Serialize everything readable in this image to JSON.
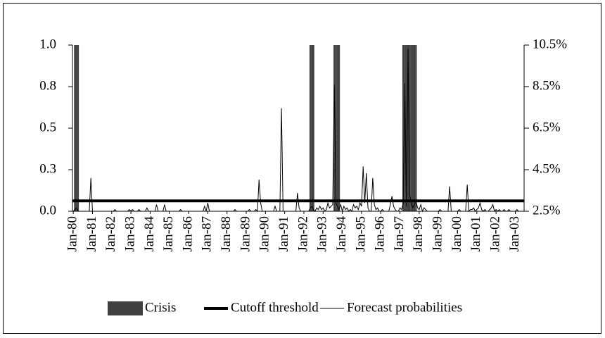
{
  "chart_data": {
    "type": "combo",
    "categories": [
      "Jan-80",
      null,
      null,
      null,
      null,
      null,
      null,
      null,
      null,
      null,
      null,
      null,
      "Jan-81",
      null,
      null,
      null,
      null,
      null,
      null,
      null,
      null,
      null,
      null,
      null,
      "Jan-82",
      null,
      null,
      null,
      null,
      null,
      null,
      null,
      null,
      null,
      null,
      null,
      "Jan-83",
      null,
      null,
      null,
      null,
      null,
      null,
      null,
      null,
      null,
      null,
      null,
      "Jan-84",
      null,
      null,
      null,
      null,
      null,
      null,
      null,
      null,
      null,
      null,
      null,
      "Jan-85",
      null,
      null,
      null,
      null,
      null,
      null,
      null,
      null,
      null,
      null,
      null,
      "Jan-86",
      null,
      null,
      null,
      null,
      null,
      null,
      null,
      null,
      null,
      null,
      null,
      "Jan-87",
      null,
      null,
      null,
      null,
      null,
      null,
      null,
      null,
      null,
      null,
      null,
      "Jan-88",
      null,
      null,
      null,
      null,
      null,
      null,
      null,
      null,
      null,
      null,
      null,
      "Jan-89",
      null,
      null,
      null,
      null,
      null,
      null,
      null,
      null,
      null,
      null,
      null,
      "Jan-90",
      null,
      null,
      null,
      null,
      null,
      null,
      null,
      null,
      null,
      null,
      null,
      "Jan-91",
      null,
      null,
      null,
      null,
      null,
      null,
      null,
      null,
      null,
      null,
      null,
      "Jan-92",
      null,
      null,
      null,
      null,
      null,
      null,
      null,
      null,
      null,
      null,
      null,
      "Jan-93",
      null,
      null,
      null,
      null,
      null,
      null,
      null,
      null,
      null,
      null,
      null,
      "Jan-94",
      null,
      null,
      null,
      null,
      null,
      null,
      null,
      null,
      null,
      null,
      null,
      "Jan-95",
      null,
      null,
      null,
      null,
      null,
      null,
      null,
      null,
      null,
      null,
      null,
      "Jan-96",
      null,
      null,
      null,
      null,
      null,
      null,
      null,
      null,
      null,
      null,
      null,
      "Jan-97",
      null,
      null,
      null,
      null,
      null,
      null,
      null,
      null,
      null,
      null,
      null,
      "Jan-98",
      null,
      null,
      null,
      null,
      null,
      null,
      null,
      null,
      null,
      null,
      null,
      "Jan-99",
      null,
      null,
      null,
      null,
      null,
      null,
      null,
      null,
      null,
      null,
      null,
      "Jan-00",
      null,
      null,
      null,
      null,
      null,
      null,
      null,
      null,
      null,
      null,
      null,
      "Jan-01",
      null,
      null,
      null,
      null,
      null,
      null,
      null,
      null,
      null,
      null,
      null,
      "Jan-02",
      null,
      null,
      null,
      null,
      null,
      null,
      null,
      null,
      null,
      null,
      null,
      "Jan-03",
      null,
      null,
      null,
      null,
      null
    ],
    "series": [
      {
        "name": "Crisis",
        "type": "bar",
        "color": "#404040",
        "values": [
          0,
          1,
          1,
          1,
          0,
          0,
          0,
          0,
          0,
          0,
          0,
          0,
          0,
          0,
          0,
          0,
          0,
          0,
          0,
          0,
          0,
          0,
          0,
          0,
          0,
          0,
          0,
          0,
          0,
          0,
          0,
          0,
          0,
          0,
          0,
          0,
          0,
          0,
          0,
          0,
          0,
          0,
          0,
          0,
          0,
          0,
          0,
          0,
          0,
          0,
          0,
          0,
          0,
          0,
          0,
          0,
          0,
          0,
          0,
          0,
          0,
          0,
          0,
          0,
          0,
          0,
          0,
          0,
          0,
          0,
          0,
          0,
          0,
          0,
          0,
          0,
          0,
          0,
          0,
          0,
          0,
          0,
          0,
          0,
          0,
          0,
          0,
          0,
          0,
          0,
          0,
          0,
          0,
          0,
          0,
          0,
          0,
          0,
          0,
          0,
          0,
          0,
          0,
          0,
          0,
          0,
          0,
          0,
          0,
          0,
          0,
          0,
          0,
          0,
          0,
          0,
          0,
          0,
          0,
          0,
          0,
          0,
          0,
          0,
          0,
          0,
          0,
          0,
          0,
          0,
          0,
          0,
          0,
          0,
          0,
          0,
          0,
          0,
          0,
          0,
          0,
          0,
          0,
          0,
          0,
          0,
          0,
          0,
          1,
          1,
          1,
          0,
          0,
          0,
          0,
          0,
          0,
          0,
          0,
          0,
          0,
          0,
          0,
          1,
          1,
          1,
          1,
          0,
          0,
          0,
          0,
          0,
          0,
          0,
          0,
          0,
          0,
          0,
          0,
          0,
          0,
          0,
          0,
          0,
          0,
          0,
          0,
          0,
          0,
          0,
          0,
          0,
          0,
          0,
          0,
          0,
          0,
          0,
          0,
          0,
          0,
          0,
          0,
          0,
          0,
          0,
          1,
          1,
          1,
          1,
          1,
          1,
          1,
          1,
          1,
          0,
          0,
          0,
          0,
          0,
          0,
          0,
          0,
          0,
          0,
          0,
          0,
          0,
          0,
          0,
          0,
          0,
          0,
          0,
          0,
          0,
          0,
          0,
          0,
          0,
          0,
          0,
          0,
          0,
          0,
          0,
          0,
          0,
          0,
          0,
          0,
          0,
          0,
          0,
          0,
          0,
          0,
          0,
          0,
          0,
          0,
          0,
          0,
          0,
          0,
          0,
          0,
          0,
          0,
          0,
          0,
          0,
          0,
          0,
          0,
          0,
          0,
          0,
          0,
          0,
          0,
          0
        ]
      },
      {
        "name": "Cutoff threshold",
        "type": "hline",
        "color": "#000000",
        "axis": "y2",
        "value": 3
      },
      {
        "name": "Forecast probabilities",
        "type": "line",
        "color": "#000000",
        "values": [
          0,
          0.01,
          0.02,
          0,
          0,
          0,
          0,
          0,
          0,
          0,
          0,
          0.2,
          0,
          0,
          0,
          0,
          0,
          0,
          0,
          0,
          0,
          0,
          0,
          0,
          0,
          0,
          0.01,
          0,
          0,
          0,
          0,
          0,
          0,
          0,
          0,
          0.01,
          0,
          0.01,
          0,
          0,
          0,
          0.01,
          0,
          0,
          0,
          0,
          0.02,
          0,
          0,
          0,
          0,
          0,
          0.04,
          0,
          0,
          0,
          0,
          0.04,
          0,
          0,
          0,
          0,
          0,
          0,
          0,
          0,
          0,
          0.01,
          0,
          0,
          0,
          0,
          0,
          0,
          0,
          0,
          0,
          0,
          0,
          0,
          0,
          0,
          0.03,
          0,
          0.05,
          0,
          0,
          0,
          0,
          0,
          0,
          0,
          0,
          0,
          0,
          0,
          0,
          0,
          0,
          0,
          0,
          0.01,
          0,
          0,
          0,
          0,
          0,
          0,
          0,
          0,
          0.01,
          0,
          0,
          0,
          0.01,
          0,
          0.19,
          0.05,
          0,
          0,
          0,
          0,
          0,
          0,
          0,
          0,
          0.03,
          0,
          0,
          0,
          0.62,
          0,
          0,
          0,
          0,
          0,
          0,
          0,
          0,
          0,
          0.11,
          0.02,
          0,
          0,
          0,
          0,
          0,
          0,
          0.02,
          0.03,
          0.01,
          0,
          0.02,
          0.01,
          0.03,
          0.01,
          0.02,
          0,
          0.01,
          0.05,
          0.02,
          0.03,
          0.04,
          0.76,
          0.05,
          0.03,
          0.01,
          0.04,
          0,
          0.03,
          0.01,
          0.02,
          0,
          0.01,
          0,
          0.04,
          0.02,
          0.03,
          0.01,
          0.05,
          0.03,
          0.27,
          0.05,
          0.23,
          0.02,
          0,
          0,
          0.2,
          0.04,
          0.01,
          0.02,
          0,
          0,
          0.01,
          0,
          0,
          0,
          0,
          0.04,
          0.09,
          0.03,
          0.01,
          0,
          0,
          0.02,
          0.01,
          0.05,
          0.77,
          0.03,
          0.98,
          0.1,
          0.05,
          0.02,
          0.04,
          0.06,
          0.02,
          0.01,
          0.04,
          0,
          0.02,
          0.01,
          0,
          0,
          0,
          0,
          0,
          0,
          0,
          0,
          0.01,
          0,
          0,
          0,
          0,
          0,
          0.15,
          0,
          0,
          0,
          0,
          0,
          0.01,
          0,
          0,
          0,
          0,
          0.16,
          0,
          0.01,
          0.01,
          0.02,
          0,
          0.01,
          0.02,
          0.05,
          0.01,
          0,
          0.01,
          0,
          0,
          0.01,
          0.02,
          0.04,
          0,
          0.01,
          0,
          0.01,
          0,
          0,
          0.01,
          0,
          0,
          0.01,
          0,
          0,
          0,
          0,
          0.01,
          0,
          0,
          0,
          0
        ]
      }
    ],
    "ylim": [
      0,
      1
    ],
    "yticks": [
      {
        "value": 0,
        "label": "0.0"
      },
      {
        "value": 0.25,
        "label": "0.3"
      },
      {
        "value": 0.5,
        "label": "0.5"
      },
      {
        "value": 0.75,
        "label": "0.8"
      },
      {
        "value": 1,
        "label": "1.0"
      }
    ],
    "y2lim": [
      2.5,
      10.5
    ],
    "y2ticks": [
      {
        "value": 2.5,
        "label": "2.5%"
      },
      {
        "value": 4.5,
        "label": "4.5%"
      },
      {
        "value": 6.5,
        "label": "6.5%"
      },
      {
        "value": 8.5,
        "label": "8.5%"
      },
      {
        "value": 10.5,
        "label": "10.5%"
      }
    ],
    "legend": "bottom"
  }
}
